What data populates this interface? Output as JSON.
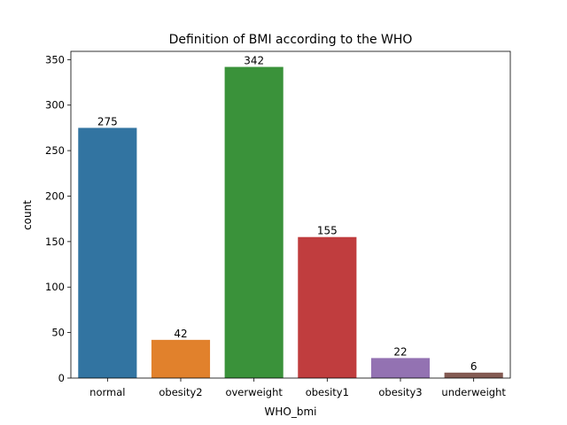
{
  "chart_data": {
    "type": "bar",
    "title": "Definition of BMI according to the WHO",
    "xlabel": "WHO_bmi",
    "ylabel": "count",
    "categories": [
      "normal",
      "obesity2",
      "overweight",
      "obesity1",
      "obesity3",
      "underweight"
    ],
    "values": [
      275,
      42,
      342,
      155,
      22,
      6
    ],
    "colors": [
      "#3274a1",
      "#e1812c",
      "#3a923a",
      "#c03d3e",
      "#9372b2",
      "#845b53"
    ],
    "yticks": [
      0,
      50,
      100,
      150,
      200,
      250,
      300,
      350
    ],
    "ylim": [
      0,
      359.1
    ],
    "grid": false,
    "legend": "none"
  }
}
